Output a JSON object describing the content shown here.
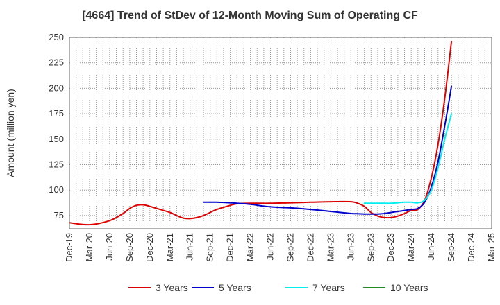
{
  "chart_data": {
    "type": "line",
    "title": "[4664]  Trend of StDev of 12-Month Moving Sum of Operating CF",
    "xlabel": "",
    "ylabel": "Amount (million yen)",
    "ylim": [
      62,
      250
    ],
    "yticks": [
      75,
      100,
      125,
      150,
      175,
      200,
      225,
      250
    ],
    "xlim": [
      "Dec-19",
      "Mar-25"
    ],
    "xticks": [
      "Dec-19",
      "Mar-20",
      "Jun-20",
      "Sep-20",
      "Dec-20",
      "Mar-21",
      "Jun-21",
      "Sep-21",
      "Dec-21",
      "Mar-22",
      "Jun-22",
      "Sep-22",
      "Dec-22",
      "Mar-23",
      "Jun-23",
      "Sep-23",
      "Dec-23",
      "Mar-24",
      "Jun-24",
      "Sep-24",
      "Dec-24",
      "Mar-25"
    ],
    "grid": true,
    "legend_position": "bottom",
    "series": [
      {
        "name": "3 Years",
        "color": "#dd0000",
        "x": [
          "Dec-19",
          "Mar-20",
          "Jun-20",
          "Aug-20",
          "Sep-20",
          "Oct-20",
          "Nov-20",
          "Dec-20",
          "Jan-21",
          "Mar-21",
          "Apr-21",
          "May-21",
          "Jun-21",
          "Jul-21",
          "Aug-21",
          "Sep-21",
          "Oct-21",
          "Dec-21",
          "Jan-22",
          "Mar-22",
          "Jun-22",
          "Sep-22",
          "Dec-22",
          "Mar-23",
          "Jun-23",
          "Jul-23",
          "Aug-23",
          "Sep-23",
          "Oct-23",
          "Nov-23",
          "Dec-23",
          "Jan-24",
          "Feb-24",
          "Mar-24",
          "Apr-24",
          "May-24",
          "Jun-24",
          "Jul-24",
          "Aug-24",
          "Sep-24"
        ],
        "values": [
          68,
          66,
          70,
          77,
          82,
          85,
          85.5,
          84,
          82,
          78,
          75,
          72.5,
          72,
          73,
          75,
          78,
          81,
          85,
          86.5,
          87,
          87,
          87.5,
          88,
          88.5,
          88.5,
          87,
          84,
          78,
          74.5,
          73,
          73,
          74.5,
          77,
          80,
          81,
          90,
          112,
          145,
          190,
          246
        ]
      },
      {
        "name": "5 Years",
        "color": "#0000cc",
        "x": [
          "Aug-21",
          "Sep-21",
          "Oct-21",
          "Dec-21",
          "Jan-22",
          "Mar-22",
          "Jun-22",
          "Sep-22",
          "Dec-22",
          "Mar-23",
          "Jun-23",
          "Jul-23",
          "Aug-23",
          "Sep-23",
          "Oct-23",
          "Nov-23",
          "Dec-23",
          "Jan-24",
          "Feb-24",
          "Mar-24",
          "Apr-24",
          "May-24",
          "Jun-24",
          "Jul-24",
          "Aug-24",
          "Sep-24"
        ],
        "values": [
          88,
          88,
          88,
          87.5,
          87,
          86,
          83.5,
          82.5,
          81,
          79,
          77,
          76.8,
          76.5,
          76.5,
          76.5,
          77,
          78,
          79,
          80,
          81,
          82,
          88,
          103,
          128,
          163,
          202
        ]
      },
      {
        "name": "7 Years",
        "color": "#00eeee",
        "x": [
          "Aug-23",
          "Sep-23",
          "Oct-23",
          "Nov-23",
          "Dec-23",
          "Jan-24",
          "Feb-24",
          "Mar-24",
          "Apr-24",
          "May-24",
          "Jun-24",
          "Jul-24",
          "Aug-24",
          "Sep-24"
        ],
        "values": [
          87,
          87,
          87,
          87,
          87,
          87.5,
          88,
          88,
          87.5,
          90,
          100,
          122,
          150,
          175
        ]
      },
      {
        "name": "10 Years",
        "color": "#228b22",
        "x": [],
        "values": []
      }
    ]
  }
}
